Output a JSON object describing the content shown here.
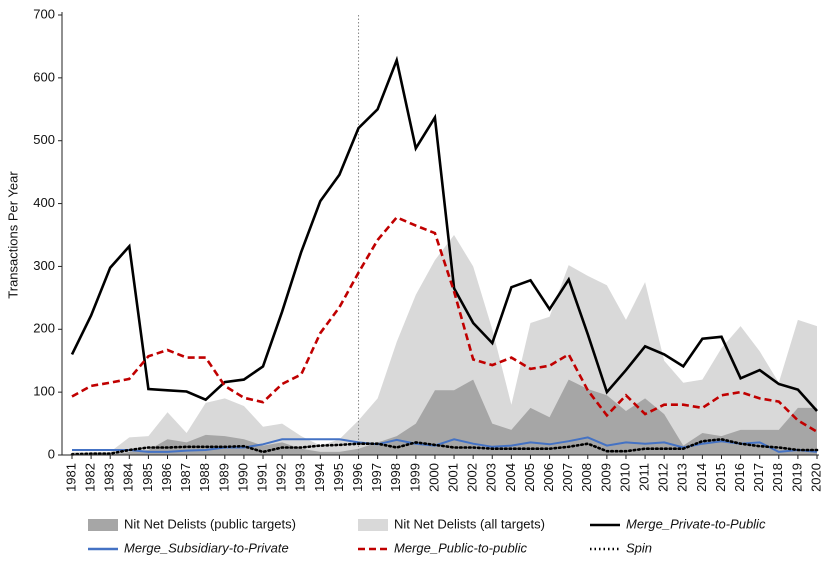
{
  "chart_data": {
    "type": "line",
    "y_label": "Transactions Per Year",
    "categories": [
      "1981",
      "1982",
      "1983",
      "1984",
      "1985",
      "1986",
      "1987",
      "1988",
      "1989",
      "1990",
      "1991",
      "1992",
      "1993",
      "1994",
      "1995",
      "1996",
      "1997",
      "1998",
      "1999",
      "2000",
      "2001",
      "2002",
      "2003",
      "2004",
      "2005",
      "2006",
      "2007",
      "2008",
      "2009",
      "2010",
      "2011",
      "2012",
      "2013",
      "2014",
      "2015",
      "2016",
      "2017",
      "2018",
      "2019",
      "2020"
    ],
    "ylim": [
      0,
      700
    ],
    "yticks": [
      0,
      100,
      200,
      300,
      400,
      500,
      600,
      700
    ],
    "reference_line_category": "1996",
    "series": [
      {
        "name": "Nit Net Delists (all targets)",
        "kind": "area",
        "color": "#d9d9d9",
        "style": "solid",
        "values": [
          5,
          5,
          5,
          28,
          30,
          68,
          35,
          83,
          90,
          78,
          45,
          50,
          30,
          15,
          25,
          55,
          90,
          180,
          255,
          310,
          350,
          300,
          200,
          80,
          210,
          220,
          302,
          285,
          270,
          215,
          275,
          150,
          115,
          120,
          170,
          205,
          165,
          115,
          215,
          205
        ]
      },
      {
        "name": "Nit Net Delists (public targets)",
        "kind": "area",
        "color": "#a6a6a6",
        "style": "solid",
        "values": [
          0,
          0,
          0,
          5,
          8,
          25,
          20,
          32,
          30,
          25,
          15,
          20,
          10,
          5,
          5,
          10,
          20,
          30,
          50,
          103,
          103,
          120,
          50,
          40,
          75,
          60,
          120,
          105,
          95,
          70,
          90,
          65,
          15,
          35,
          30,
          40,
          40,
          40,
          75,
          75
        ]
      },
      {
        "name": "Merge_Private-to-Public",
        "kind": "line",
        "color": "#000000",
        "style": "solid",
        "values": [
          160,
          222,
          298,
          332,
          105,
          103,
          101,
          88,
          116,
          120,
          141,
          228,
          323,
          404,
          446,
          520,
          550,
          628,
          488,
          537,
          265,
          210,
          178,
          267,
          278,
          232,
          279,
          192,
          100,
          135,
          173,
          160,
          141,
          185,
          188,
          122,
          135,
          113,
          104,
          70
        ]
      },
      {
        "name": "Merge_Subsidiary-to-Private",
        "kind": "line",
        "color": "#4472c4",
        "style": "solid",
        "values": [
          8,
          8,
          8,
          8,
          5,
          5,
          7,
          8,
          12,
          12,
          17,
          25,
          25,
          25,
          25,
          20,
          17,
          24,
          18,
          15,
          25,
          18,
          13,
          15,
          20,
          17,
          22,
          28,
          15,
          20,
          18,
          20,
          12,
          18,
          22,
          18,
          20,
          5,
          8,
          5
        ]
      },
      {
        "name": "Merge_Public-to-public",
        "kind": "line",
        "color": "#c00000",
        "style": "dashed",
        "values": [
          93,
          110,
          115,
          121,
          157,
          167,
          155,
          155,
          110,
          91,
          84,
          113,
          128,
          194,
          235,
          290,
          342,
          378,
          365,
          353,
          260,
          152,
          143,
          155,
          137,
          142,
          160,
          103,
          63,
          95,
          65,
          80,
          80,
          75,
          95,
          100,
          90,
          85,
          55,
          37
        ]
      },
      {
        "name": "Spin",
        "kind": "line",
        "color": "#000000",
        "style": "dotted",
        "values": [
          1,
          2,
          2,
          8,
          12,
          12,
          13,
          13,
          13,
          14,
          5,
          12,
          12,
          15,
          16,
          18,
          18,
          12,
          20,
          16,
          12,
          12,
          10,
          10,
          10,
          10,
          13,
          18,
          6,
          6,
          10,
          10,
          10,
          22,
          25,
          18,
          14,
          12,
          8,
          8
        ]
      }
    ]
  }
}
